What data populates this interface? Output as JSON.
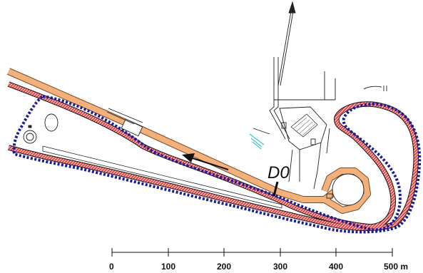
{
  "map": {
    "marker_label": "D0",
    "scale_bar": {
      "ticks": [
        "0",
        "100",
        "200",
        "300",
        "400",
        "500 m"
      ]
    },
    "colors": {
      "track_red_hatch": "#e04848",
      "track_orange": "#f2b07a",
      "boundary_dotted": "#1a1a9a",
      "linework": "#111111",
      "cyan_feature": "#3fc8c8"
    },
    "icons": {
      "direction_arrow": "direction-arrow-icon",
      "north_arrow": "north-arrow-icon"
    }
  }
}
